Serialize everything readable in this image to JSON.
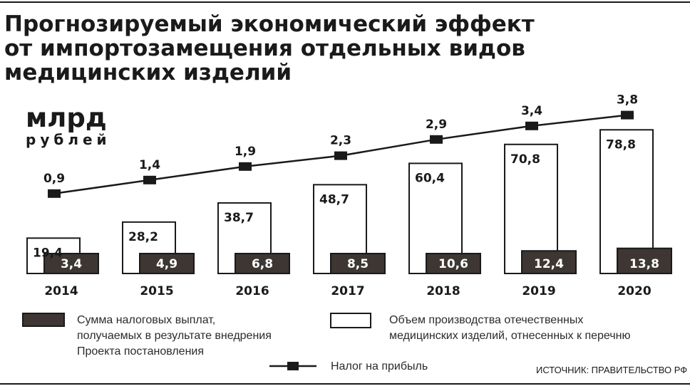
{
  "title_lines": [
    "Прогнозируемый экономический эффект",
    "от импортозамещения отдельных видов",
    "медицинских изделий"
  ],
  "unit": {
    "big": "млрд",
    "small": "рублей"
  },
  "source": "ИСТОЧНИК: ПРАВИТЕЛЬСТВО РФ",
  "legend": {
    "tax": [
      "Сумма налоговых выплат,",
      "получаемых в результате внедрения",
      "Проекта постановления"
    ],
    "production": [
      "Объем производства отечественных",
      "медицинских изделий, отнесенных к перечню"
    ],
    "profit_tax": [
      "Налог на прибыль"
    ]
  },
  "colors": {
    "production_fill": "#ffffff",
    "tax_fill": "#3d3633",
    "line": "#1a1a1a",
    "text": "#1a1a1a"
  },
  "chart_data": {
    "type": "bar",
    "categories": [
      "2014",
      "2015",
      "2016",
      "2017",
      "2018",
      "2019",
      "2020"
    ],
    "series": [
      {
        "name": "Объем производства отечественных медицинских изделий, отнесенных к перечню",
        "kind": "bar",
        "values": [
          19.4,
          28.2,
          38.7,
          48.7,
          60.4,
          70.8,
          78.8
        ],
        "labels": [
          "19,4",
          "28,2",
          "38,7",
          "48,7",
          "60,4",
          "70,8",
          "78,8"
        ]
      },
      {
        "name": "Сумма налоговых выплат, получаемых в результате внедрения Проекта постановления",
        "kind": "bar",
        "values": [
          3.4,
          4.9,
          6.8,
          8.5,
          10.6,
          12.4,
          13.8
        ],
        "labels": [
          "3,4",
          "4,9",
          "6,8",
          "8,5",
          "10,6",
          "12,4",
          "13,8"
        ]
      },
      {
        "name": "Налог на прибыль",
        "kind": "line",
        "values": [
          0.9,
          1.4,
          1.9,
          2.3,
          2.9,
          3.4,
          3.8
        ],
        "labels": [
          "0,9",
          "1,4",
          "1,9",
          "2,3",
          "2,9",
          "3,4",
          "3,8"
        ]
      }
    ],
    "ylabel": "млрд рублей",
    "grid": false,
    "legend_position": "bottom"
  }
}
